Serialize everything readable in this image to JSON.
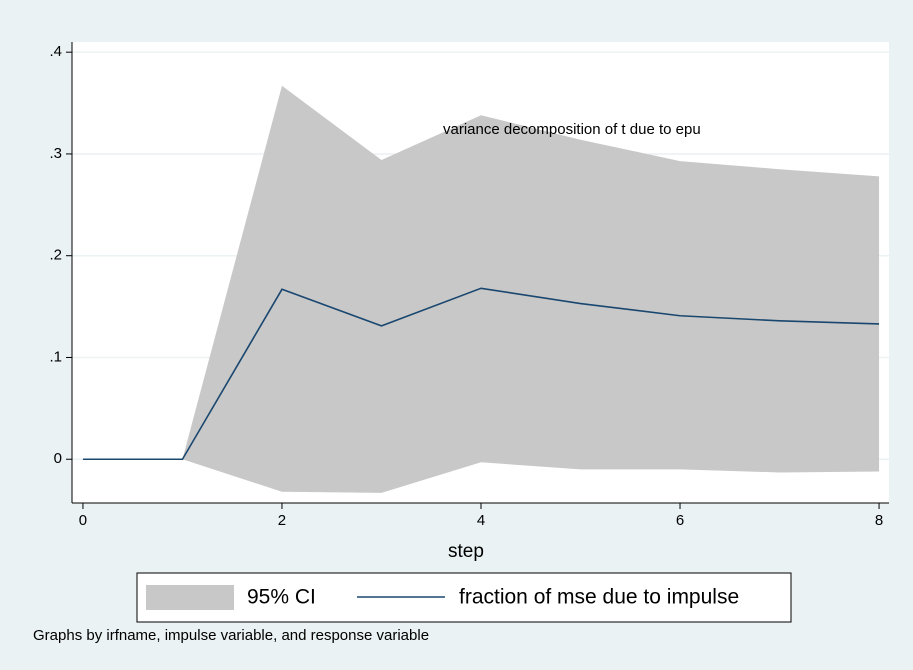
{
  "chart_data": {
    "type": "line",
    "annotation": "variance decomposition of t due to epu",
    "xlabel": "step",
    "note": "Graphs by irfname, impulse variable, and response variable",
    "x": [
      0,
      1,
      2,
      3,
      4,
      5,
      6,
      7,
      8
    ],
    "series": [
      {
        "name": "95% CI",
        "type": "area",
        "color": "#c8c8c8",
        "upper": [
          null,
          0,
          0.367,
          0.294,
          0.338,
          0.314,
          0.293,
          0.285,
          0.278
        ],
        "lower": [
          null,
          0,
          -0.032,
          -0.033,
          -0.003,
          -0.01,
          -0.01,
          -0.013,
          -0.012
        ]
      },
      {
        "name": "fraction of mse due to impulse",
        "type": "line",
        "color": "#1a476f",
        "values": [
          0,
          0,
          0.167,
          0.131,
          0.168,
          0.153,
          0.141,
          0.136,
          0.133
        ]
      }
    ],
    "xlim": [
      -0.11,
      8.1
    ],
    "xticks": [
      0,
      2,
      4,
      6,
      8
    ],
    "ylim": [
      -0.043,
      0.41
    ],
    "yticks": [
      0,
      {
        "value": 0.1,
        "label": ".1"
      },
      {
        "value": 0.2,
        "label": ".2"
      },
      {
        "value": 0.3,
        "label": ".3"
      },
      {
        "value": 0.4,
        "label": ".4"
      }
    ],
    "grid": true
  }
}
